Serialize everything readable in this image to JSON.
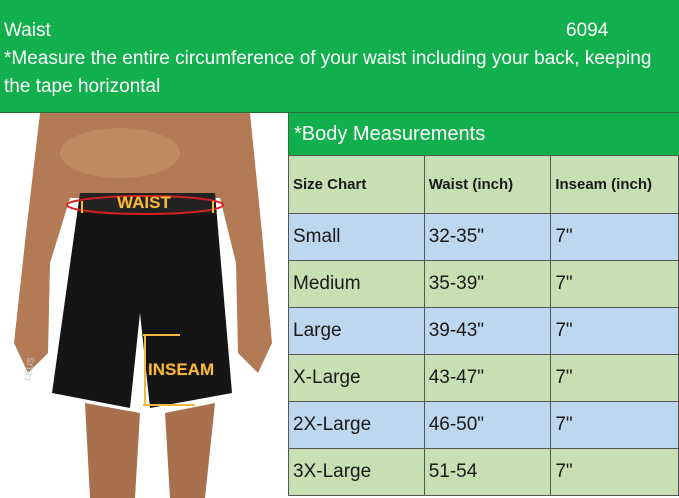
{
  "header": {
    "title": "Waist",
    "code": "6094",
    "instruction": "*Measure the entire circumference of your waist including your back, keeping the tape horizontal"
  },
  "photo": {
    "waist_label": "WAIST",
    "inseam_label": "INSEAM",
    "brand_mark": "LEUS"
  },
  "table": {
    "title": "*Body Measurements",
    "columns": [
      "Size Chart",
      "Waist (inch)",
      "Inseam (inch)"
    ],
    "rows": [
      [
        "Small",
        "32-35\"",
        "7\""
      ],
      [
        "Medium",
        "35-39\"",
        "7\""
      ],
      [
        "Large",
        "39-43\"",
        "7\""
      ],
      [
        "X-Large",
        "43-47\"",
        "7\""
      ],
      [
        "2X-Large",
        "46-50\"",
        "7\""
      ],
      [
        "3X-Large",
        "51-54",
        "7\""
      ]
    ]
  },
  "colors": {
    "header_green": "#12b04c",
    "row_blue": "#bdd7ee",
    "row_green": "#c6e0b4",
    "label_gold": "#f4b740"
  }
}
